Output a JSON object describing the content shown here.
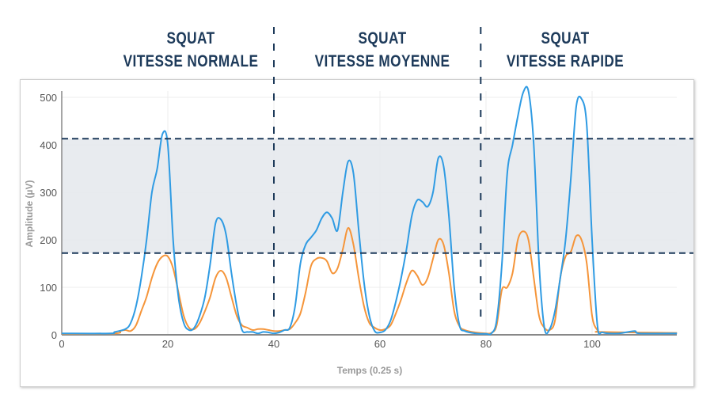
{
  "phases": [
    {
      "line1": "SQUAT",
      "line2": "VITESSE NORMALE"
    },
    {
      "line1": "SQUAT",
      "line2": "VITESSE MOYENNE"
    },
    {
      "line1": "SQUAT",
      "line2": "VITESSE RAPIDE"
    }
  ],
  "chart_data": {
    "type": "line",
    "xlabel": "Temps (0.25 s)",
    "ylabel": "Amplitude (µV)",
    "xlim": [
      0,
      116
    ],
    "ylim": [
      0,
      510
    ],
    "xticks": [
      0,
      20,
      40,
      60,
      80,
      100
    ],
    "yticks": [
      0,
      100,
      200,
      300,
      400,
      500
    ],
    "grid": true,
    "threshold_band": {
      "low": 172,
      "high": 413,
      "color": "#e5e9ed"
    },
    "threshold_lines": [
      172,
      413
    ],
    "phase_dividers_x": [
      40,
      79
    ],
    "colors": {
      "series1": "#2f9be3",
      "series2": "#f5953a",
      "dashed": "#1d3a5a"
    },
    "series": [
      {
        "x": [
          0,
          9,
          10,
          12,
          13,
          14,
          15,
          16,
          17,
          18,
          19,
          20,
          21,
          22,
          23,
          24,
          25,
          26,
          27,
          28,
          29,
          30,
          31,
          32,
          33,
          34,
          35,
          36,
          37,
          38,
          39,
          40,
          41,
          42,
          43,
          44,
          45,
          46,
          47,
          48,
          49,
          50,
          51,
          52,
          53,
          54,
          55,
          56,
          57,
          58,
          59,
          60,
          61,
          62,
          63,
          64,
          65,
          66,
          67,
          68,
          69,
          70,
          71,
          72,
          73,
          74,
          75,
          76,
          78,
          80,
          81,
          82,
          83,
          84,
          85,
          86,
          87,
          88,
          89,
          90,
          91,
          92,
          93,
          94,
          95,
          96,
          97,
          98,
          99,
          100,
          101,
          102,
          105,
          108,
          109,
          116
        ],
        "values": [
          3,
          3,
          6,
          12,
          25,
          60,
          120,
          200,
          300,
          350,
          423,
          400,
          200,
          80,
          25,
          10,
          15,
          40,
          80,
          150,
          235,
          243,
          210,
          130,
          60,
          10,
          6,
          6,
          3,
          6,
          5,
          3,
          5,
          10,
          15,
          60,
          150,
          190,
          205,
          220,
          245,
          258,
          245,
          220,
          300,
          365,
          340,
          220,
          110,
          40,
          8,
          5,
          10,
          30,
          70,
          120,
          180,
          250,
          283,
          280,
          270,
          300,
          372,
          355,
          250,
          100,
          20,
          8,
          3,
          2,
          3,
          30,
          150,
          340,
          400,
          460,
          510,
          513,
          400,
          150,
          15,
          12,
          50,
          120,
          200,
          330,
          480,
          497,
          440,
          200,
          20,
          5,
          3,
          8,
          3,
          3
        ]
      },
      {
        "x": [
          0,
          10,
          11,
          12,
          13,
          14,
          15,
          16,
          17,
          18,
          19,
          20,
          21,
          22,
          23,
          24,
          25,
          26,
          27,
          28,
          29,
          30,
          31,
          32,
          33,
          34,
          35,
          36,
          37,
          38,
          39,
          40,
          41,
          42,
          43,
          44,
          45,
          46,
          47,
          48,
          49,
          50,
          51,
          52,
          53,
          54,
          55,
          56,
          57,
          58,
          59,
          60,
          61,
          62,
          63,
          64,
          65,
          66,
          67,
          68,
          69,
          70,
          71,
          72,
          73,
          74,
          75,
          76,
          78,
          80,
          81,
          82,
          83,
          84,
          85,
          86,
          87,
          88,
          89,
          90,
          91,
          92,
          93,
          94,
          95,
          96,
          97,
          98,
          99,
          100,
          101,
          102,
          116
        ],
        "values": [
          2,
          3,
          8,
          10,
          8,
          20,
          50,
          80,
          120,
          150,
          165,
          165,
          140,
          90,
          40,
          15,
          12,
          25,
          50,
          80,
          120,
          135,
          120,
          80,
          40,
          20,
          15,
          10,
          12,
          12,
          10,
          8,
          8,
          10,
          12,
          25,
          45,
          90,
          145,
          160,
          162,
          155,
          130,
          140,
          180,
          225,
          190,
          120,
          60,
          25,
          15,
          10,
          12,
          20,
          45,
          75,
          110,
          135,
          125,
          105,
          120,
          160,
          200,
          190,
          130,
          50,
          18,
          10,
          5,
          3,
          4,
          20,
          95,
          100,
          130,
          200,
          218,
          200,
          120,
          40,
          15,
          10,
          30,
          120,
          165,
          175,
          208,
          200,
          150,
          40,
          10,
          6,
          4
        ]
      }
    ]
  }
}
